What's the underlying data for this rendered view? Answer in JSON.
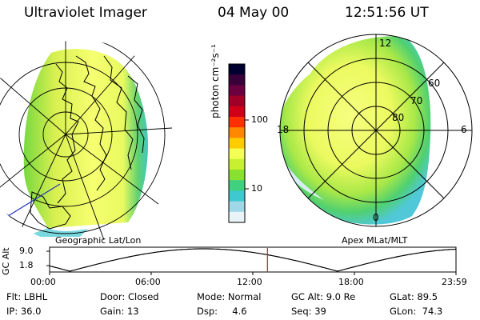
{
  "header": {
    "title": "Ultraviolet Imager",
    "date": "04 May 00",
    "time": "12:51:56 UT"
  },
  "geo_panel": {
    "label": "Geographic Lat/Lon"
  },
  "colorbar": {
    "unit_label": "photon cm⁻²s⁻¹",
    "ticks": [
      "100",
      "10"
    ],
    "colors": [
      "#000030",
      "#3a003a",
      "#6a0040",
      "#a00028",
      "#d00018",
      "#ff3000",
      "#ff8800",
      "#ffcc00",
      "#f4ff55",
      "#c8f030",
      "#88e030",
      "#40d080",
      "#40c8d0",
      "#a0d8e8",
      "#e8f4f8"
    ]
  },
  "mlt_panel": {
    "label": "Apex MLat/MLT",
    "lat_labels": [
      "60",
      "70",
      "80"
    ],
    "time_labels": {
      "top": "12",
      "left": "18",
      "right": "6",
      "bottom": "0"
    }
  },
  "timeline": {
    "ylabel": "GC Alt",
    "yticks": [
      "9.0",
      "1.8"
    ],
    "xticks": [
      "00:00",
      "06:00",
      "12:00",
      "18:00",
      "23:59"
    ],
    "marker_time": "12:51:56",
    "marker_color": "#cc2200"
  },
  "info": {
    "row1": [
      "Flt: LBHL",
      "Door: Closed",
      "Mode: Normal",
      "GC Alt: 9.0 Re",
      "GLat: 89.5"
    ],
    "row2": [
      "IP: 36.0",
      "Gain: 13",
      "Dsp:     4.6",
      "Seq: 39",
      "GLon:  74.3"
    ]
  }
}
